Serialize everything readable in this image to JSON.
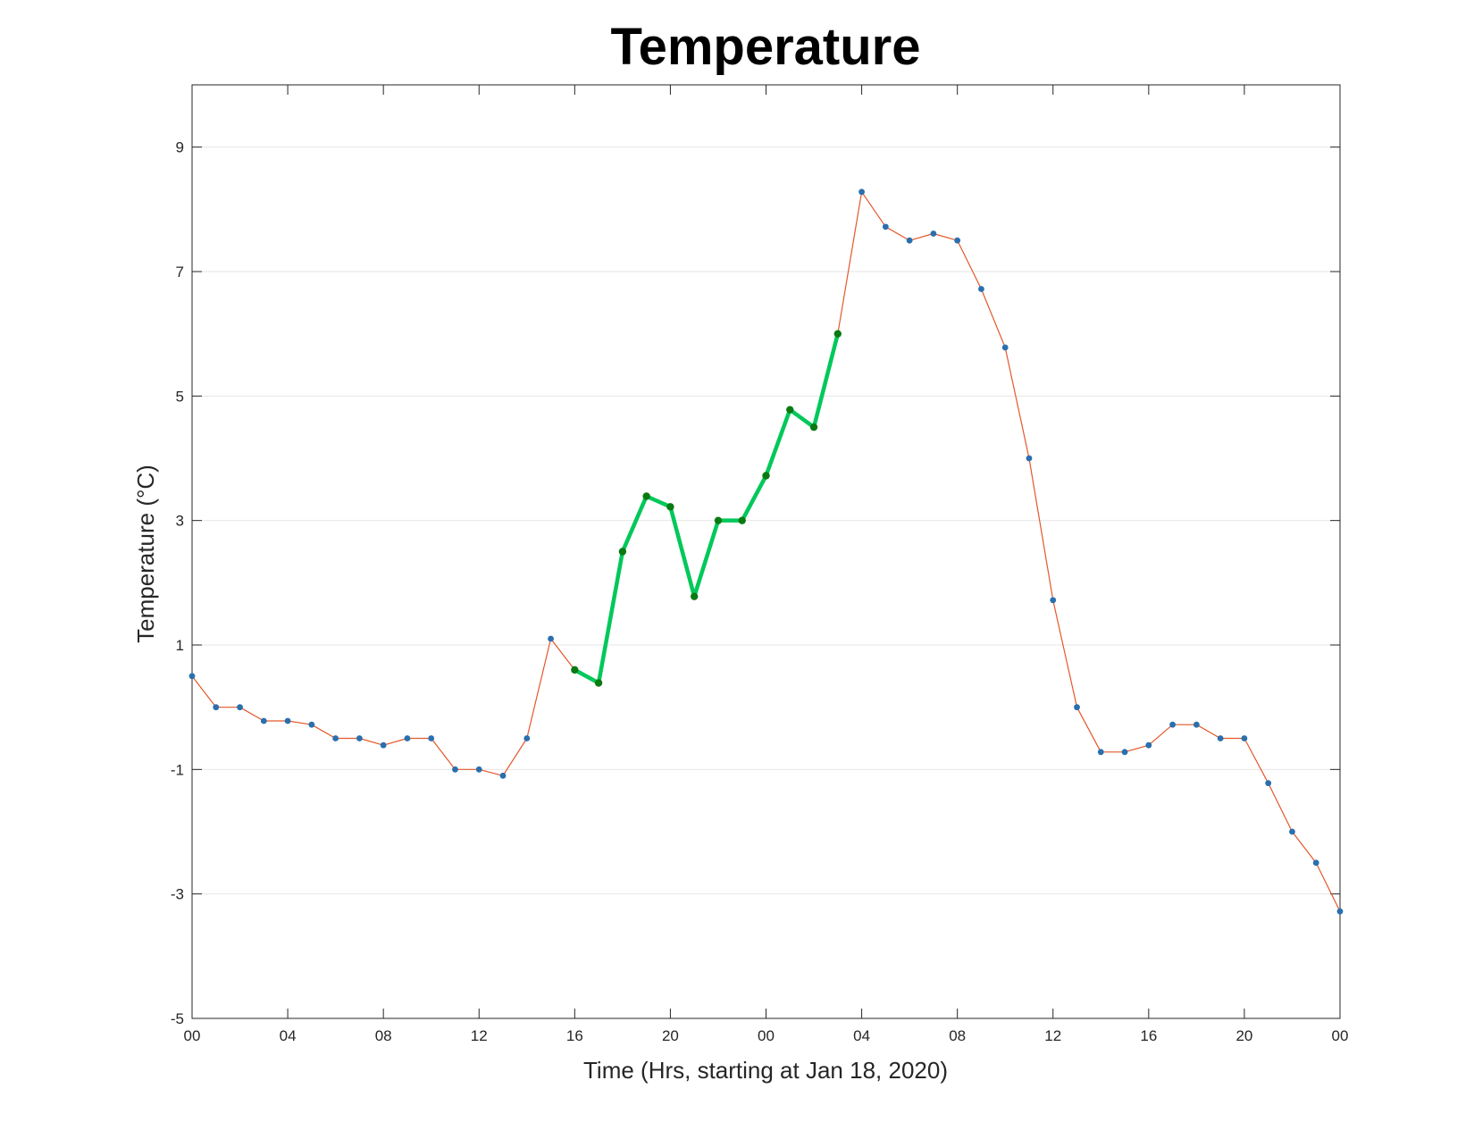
{
  "chart_data": {
    "type": "line",
    "title": "Temperature",
    "xlabel": "Time (Hrs, starting at Jan 18, 2020)",
    "ylabel": "Temperature (°C)",
    "xlim": [
      0,
      48
    ],
    "ylim": [
      -5,
      10
    ],
    "grid": "horizontal",
    "x_ticks": [
      0,
      4,
      8,
      12,
      16,
      20,
      24,
      28,
      32,
      36,
      40,
      44,
      48
    ],
    "x_tick_labels": [
      "00",
      "04",
      "08",
      "12",
      "16",
      "20",
      "00",
      "04",
      "08",
      "12",
      "16",
      "20",
      "00"
    ],
    "y_ticks": [
      -5,
      -3,
      -1,
      1,
      3,
      5,
      7,
      9
    ],
    "y_tick_labels": [
      "-5",
      "-3",
      "-1",
      "1",
      "3",
      "5",
      "7",
      "9"
    ],
    "colors": {
      "line": "#e3582a",
      "marker": "#2a6fae",
      "highlight_line": "#00c85a",
      "highlight_marker": "#0a7a12",
      "grid": "#e6e6e6",
      "axis": "#262626"
    },
    "series": [
      {
        "x": [
          0,
          1,
          2,
          3,
          4,
          5,
          6,
          7,
          8,
          9,
          10,
          11,
          12,
          13,
          14,
          15,
          16,
          17,
          18,
          19,
          20,
          21,
          22,
          23,
          24,
          25,
          26,
          27,
          28,
          29,
          30,
          31,
          32,
          33,
          34,
          35,
          36,
          37,
          38,
          39,
          40,
          41,
          42,
          43,
          44,
          45,
          46,
          47,
          48
        ],
        "values": [
          0.5,
          0,
          0,
          -0.22,
          -0.22,
          -0.28,
          -0.5,
          -0.5,
          -0.61,
          -0.5,
          -0.5,
          -1,
          -1,
          -1.1,
          -0.5,
          1.1,
          0.6,
          0.39,
          2.5,
          3.39,
          3.22,
          1.78,
          3,
          3,
          3.72,
          4.78,
          4.5,
          6,
          8.28,
          7.72,
          7.5,
          7.61,
          7.5,
          6.72,
          5.78,
          4,
          1.72,
          0,
          -0.72,
          -0.72,
          -0.61,
          -0.28,
          -0.28,
          -0.5,
          -0.5,
          -1.22,
          -2,
          -2.5,
          -3.28
        ]
      },
      {
        "x": [
          16,
          17,
          18,
          19,
          20,
          21,
          22,
          23,
          24,
          25,
          26,
          27
        ],
        "values": [
          0.6,
          0.39,
          2.5,
          3.39,
          3.22,
          1.78,
          3,
          3,
          3.72,
          4.78,
          4.5,
          6
        ]
      }
    ]
  }
}
